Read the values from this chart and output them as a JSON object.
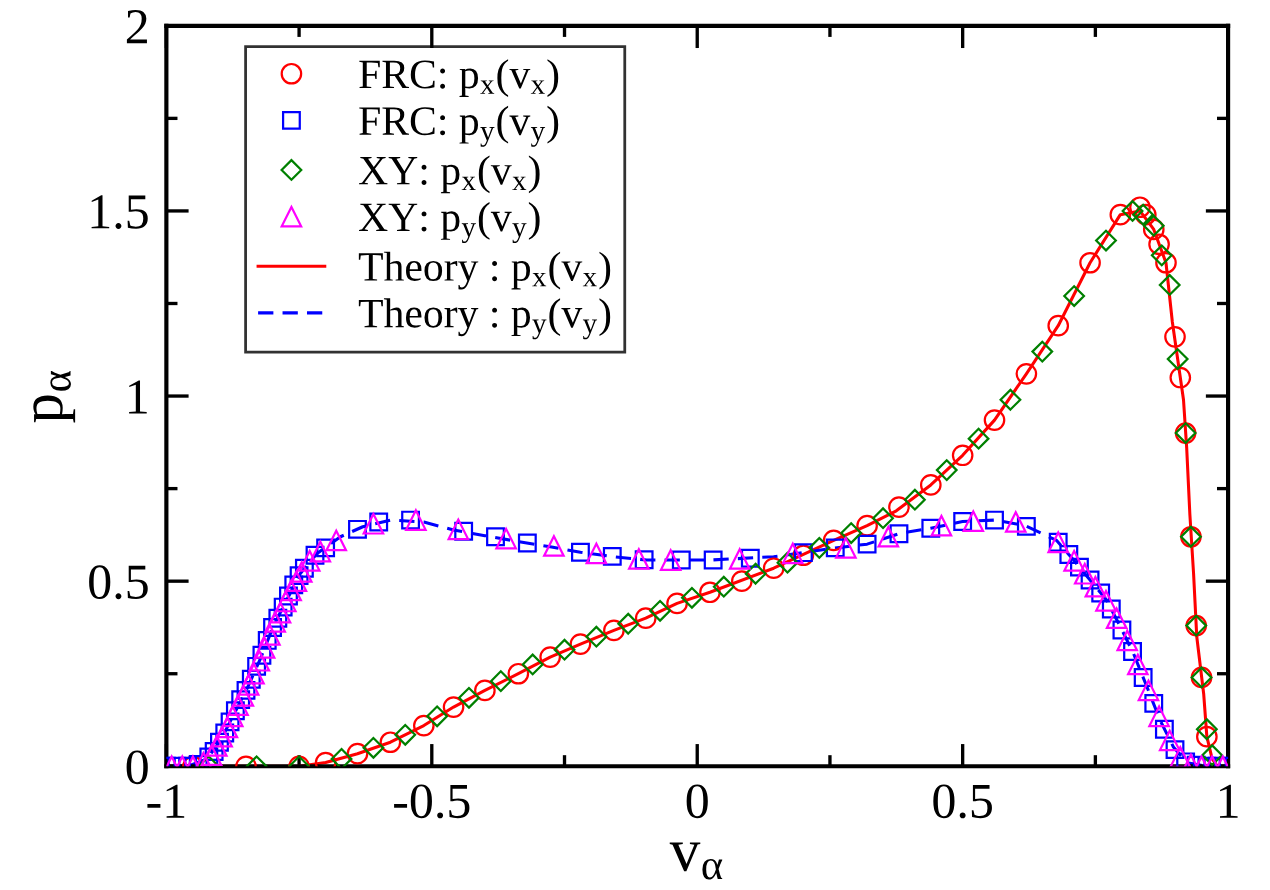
{
  "chart_data": {
    "type": "line",
    "xlabel": "v$_{α}$",
    "ylabel": "p$_{α}$",
    "xlim": [
      -1,
      1
    ],
    "ylim": [
      0,
      2
    ],
    "xticks": [
      {
        "value": -1,
        "label": "-1"
      },
      {
        "value": -0.75,
        "label": null
      },
      {
        "value": -0.5,
        "label": "-0.5"
      },
      {
        "value": -0.25,
        "label": null
      },
      {
        "value": 0,
        "label": "0"
      },
      {
        "value": 0.25,
        "label": null
      },
      {
        "value": 0.5,
        "label": "0.5"
      },
      {
        "value": 0.75,
        "label": null
      },
      {
        "value": 1,
        "label": "1"
      }
    ],
    "yticks": [
      0,
      {
        "value": 0.25,
        "label": null
      },
      0.5,
      {
        "value": 0.75,
        "label": null
      },
      1,
      {
        "value": 1.25,
        "label": null
      },
      1.5,
      {
        "value": 1.75,
        "label": null
      },
      2
    ],
    "grid": false,
    "legend": "top left",
    "series": [
      {
        "name": "FRC: p$_{x}$(v$_{x}$)",
        "type": "scatter",
        "marker": "circle",
        "color": "#ff0000",
        "x": [
          -0.95,
          -0.85,
          -0.75,
          -0.7,
          -0.64,
          -0.578,
          -0.515,
          -0.459,
          -0.4,
          -0.337,
          -0.277,
          -0.22,
          -0.157,
          -0.097,
          -0.038,
          0.024,
          0.084,
          0.144,
          0.2,
          0.257,
          0.32,
          0.38,
          0.44,
          0.5,
          0.56,
          0.62,
          0.68,
          0.74,
          0.797,
          0.834,
          0.845,
          0.86,
          0.87,
          0.883,
          0.9,
          0.91,
          0.92,
          0.93,
          0.94,
          0.95,
          0.96
        ],
        "values": [
          0,
          0,
          0,
          0.01,
          0.034,
          0.065,
          0.11,
          0.16,
          0.205,
          0.25,
          0.295,
          0.33,
          0.367,
          0.4,
          0.44,
          0.47,
          0.5,
          0.535,
          0.57,
          0.61,
          0.65,
          0.7,
          0.76,
          0.84,
          0.935,
          1.06,
          1.19,
          1.36,
          1.49,
          1.51,
          1.49,
          1.45,
          1.41,
          1.36,
          1.16,
          1.05,
          0.9,
          0.62,
          0.38,
          0.24,
          0.08
        ]
      },
      {
        "name": "FRC: p$_{y}$(v$_{y}$)",
        "type": "scatter",
        "marker": "square",
        "color": "#0000ff",
        "x": [
          -1,
          -0.98,
          -0.96,
          -0.94,
          -0.92,
          -0.91,
          -0.9,
          -0.89,
          -0.88,
          -0.87,
          -0.86,
          -0.85,
          -0.84,
          -0.83,
          -0.82,
          -0.81,
          -0.8,
          -0.79,
          -0.78,
          -0.77,
          -0.76,
          -0.75,
          -0.74,
          -0.72,
          -0.7,
          -0.64,
          -0.6,
          -0.54,
          -0.44,
          -0.38,
          -0.32,
          -0.22,
          -0.16,
          -0.1,
          -0.03,
          0.03,
          0.1,
          0.2,
          0.26,
          0.32,
          0.38,
          0.44,
          0.5,
          0.56,
          0.62,
          0.68,
          0.7,
          0.72,
          0.74,
          0.76,
          0.78,
          0.8,
          0.82,
          0.84,
          0.86,
          0.88,
          0.9,
          0.92,
          0.94,
          0.96,
          0.98,
          1
        ],
        "values": [
          0,
          0,
          0,
          0.005,
          0.025,
          0.04,
          0.065,
          0.09,
          0.12,
          0.15,
          0.18,
          0.205,
          0.235,
          0.27,
          0.3,
          0.34,
          0.375,
          0.4,
          0.43,
          0.46,
          0.49,
          0.515,
          0.535,
          0.57,
          0.59,
          0.64,
          0.66,
          0.665,
          0.635,
          0.62,
          0.603,
          0.578,
          0.567,
          0.558,
          0.557,
          0.557,
          0.562,
          0.577,
          0.59,
          0.6,
          0.628,
          0.643,
          0.661,
          0.665,
          0.648,
          0.605,
          0.572,
          0.538,
          0.503,
          0.468,
          0.425,
          0.368,
          0.31,
          0.24,
          0.17,
          0.1,
          0.045,
          0.012,
          0.003,
          0,
          0,
          0
        ]
      },
      {
        "name": "XY: p$_{x}$(v$_{x}$)",
        "type": "scatter",
        "marker": "diamond",
        "color": "#008000",
        "x": [
          -0.92,
          -0.83,
          -0.75,
          -0.67,
          -0.61,
          -0.55,
          -0.49,
          -0.43,
          -0.37,
          -0.31,
          -0.25,
          -0.19,
          -0.13,
          -0.07,
          -0.01,
          0.05,
          0.11,
          0.17,
          0.23,
          0.29,
          0.35,
          0.41,
          0.47,
          0.53,
          0.59,
          0.65,
          0.71,
          0.77,
          0.82,
          0.84,
          0.86,
          0.875,
          0.89,
          0.905,
          0.92,
          0.93,
          0.94,
          0.95,
          0.96,
          0.97
        ],
        "values": [
          0,
          0,
          0,
          0.02,
          0.05,
          0.085,
          0.135,
          0.185,
          0.23,
          0.275,
          0.315,
          0.35,
          0.385,
          0.42,
          0.455,
          0.485,
          0.52,
          0.55,
          0.59,
          0.63,
          0.67,
          0.72,
          0.8,
          0.885,
          0.99,
          1.12,
          1.27,
          1.42,
          1.5,
          1.49,
          1.46,
          1.38,
          1.3,
          1.1,
          0.9,
          0.62,
          0.38,
          0.24,
          0.1,
          0.03
        ]
      },
      {
        "name": "XY: p$_{y}$(v$_{y}$)",
        "type": "scatter",
        "marker": "triangle",
        "color": "#ff00ff",
        "x": [
          -0.99,
          -0.97,
          -0.95,
          -0.93,
          -0.915,
          -0.905,
          -0.895,
          -0.885,
          -0.875,
          -0.865,
          -0.855,
          -0.845,
          -0.835,
          -0.825,
          -0.815,
          -0.805,
          -0.795,
          -0.785,
          -0.775,
          -0.765,
          -0.755,
          -0.745,
          -0.73,
          -0.71,
          -0.68,
          -0.61,
          -0.53,
          -0.45,
          -0.36,
          -0.27,
          -0.19,
          -0.11,
          -0.05,
          0.08,
          0.18,
          0.28,
          0.36,
          0.46,
          0.52,
          0.6,
          0.68,
          0.71,
          0.73,
          0.75,
          0.77,
          0.79,
          0.81,
          0.83,
          0.85,
          0.87,
          0.89,
          0.91,
          0.93,
          0.95,
          0.97,
          0.99
        ],
        "values": [
          0,
          0,
          0,
          0.01,
          0.03,
          0.055,
          0.08,
          0.105,
          0.135,
          0.165,
          0.19,
          0.22,
          0.25,
          0.285,
          0.32,
          0.355,
          0.39,
          0.415,
          0.445,
          0.475,
          0.5,
          0.525,
          0.555,
          0.58,
          0.61,
          0.655,
          0.665,
          0.64,
          0.615,
          0.595,
          0.575,
          0.56,
          0.557,
          0.56,
          0.575,
          0.59,
          0.62,
          0.65,
          0.662,
          0.66,
          0.605,
          0.555,
          0.52,
          0.485,
          0.447,
          0.4,
          0.34,
          0.275,
          0.205,
          0.135,
          0.07,
          0.025,
          0.005,
          0,
          0,
          0
        ]
      },
      {
        "name": "Theory : p$_{x}$(v$_{x}$)",
        "line_style": "solid",
        "color": "#ff0000",
        "x": [
          -1,
          -0.9,
          -0.8,
          -0.75,
          -0.7,
          -0.64,
          -0.578,
          -0.515,
          -0.459,
          -0.4,
          -0.337,
          -0.277,
          -0.22,
          -0.157,
          -0.097,
          -0.038,
          0.024,
          0.144,
          0.257,
          0.32,
          0.375,
          0.44,
          0.5,
          0.56,
          0.62,
          0.68,
          0.74,
          0.797,
          0.834,
          0.86,
          0.883,
          0.895,
          0.916,
          0.922,
          0.928,
          0.935,
          0.941,
          0.954,
          0.96,
          0.97,
          0.98,
          1
        ],
        "values": [
          0,
          0,
          0,
          0,
          0.01,
          0.034,
          0.065,
          0.11,
          0.16,
          0.205,
          0.25,
          0.295,
          0.33,
          0.367,
          0.4,
          0.44,
          0.47,
          0.535,
          0.61,
          0.65,
          0.69,
          0.76,
          0.84,
          0.935,
          1.06,
          1.19,
          1.36,
          1.49,
          1.5,
          1.45,
          1.36,
          1.2,
          0.99,
          0.86,
          0.68,
          0.52,
          0.35,
          0.196,
          0.08,
          0.02,
          0,
          0
        ]
      },
      {
        "name": "Theory : p$_{y}$(v$_{y}$)",
        "line_style": "dashed",
        "color": "#0000ff",
        "x": [
          -1,
          -0.96,
          -0.923,
          -0.898,
          -0.873,
          -0.848,
          -0.823,
          -0.798,
          -0.773,
          -0.748,
          -0.716,
          -0.672,
          -0.63,
          -0.578,
          -0.515,
          -0.459,
          -0.4,
          -0.337,
          -0.277,
          -0.22,
          -0.157,
          -0.095,
          -0.038,
          0.024,
          0.144,
          0.257,
          0.32,
          0.382,
          0.44,
          0.5,
          0.56,
          0.618,
          0.677,
          0.709,
          0.74,
          0.771,
          0.797,
          0.822,
          0.847,
          0.872,
          0.897,
          0.922,
          0.96,
          1
        ],
        "values": [
          0,
          0,
          0.02,
          0.07,
          0.14,
          0.21,
          0.29,
          0.38,
          0.45,
          0.52,
          0.575,
          0.62,
          0.647,
          0.665,
          0.66,
          0.638,
          0.623,
          0.607,
          0.593,
          0.578,
          0.566,
          0.557,
          0.557,
          0.557,
          0.566,
          0.589,
          0.6,
          0.629,
          0.643,
          0.661,
          0.665,
          0.65,
          0.61,
          0.557,
          0.503,
          0.449,
          0.377,
          0.304,
          0.215,
          0.124,
          0.052,
          0.01,
          0,
          0
        ]
      }
    ]
  }
}
